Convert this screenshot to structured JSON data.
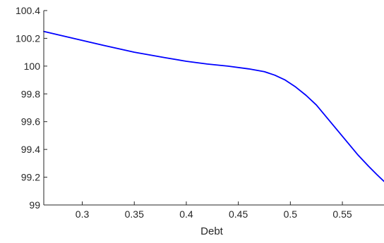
{
  "chart_data": {
    "type": "line",
    "title": "",
    "xlabel": "Debt",
    "ylabel": "",
    "xlim": [
      0.263,
      0.59
    ],
    "ylim": [
      99,
      100.4
    ],
    "xticks": [
      0.3,
      0.35,
      0.4,
      0.45,
      0.5,
      0.55
    ],
    "xtick_labels": [
      "0.3",
      "0.35",
      "0.4",
      "0.45",
      "0.5",
      "0.55"
    ],
    "yticks": [
      99,
      99.2,
      99.4,
      99.6,
      99.8,
      100,
      100.2,
      100.4
    ],
    "ytick_labels": [
      "99",
      "99.2",
      "99.4",
      "99.6",
      "99.8",
      "100",
      "100.2",
      "100.4"
    ],
    "grid": false,
    "legend": "none",
    "colors": {
      "line": "#0000ff",
      "axis": "#262626"
    },
    "series": [
      {
        "x": [
          0.263,
          0.28,
          0.3,
          0.32,
          0.35,
          0.38,
          0.4,
          0.42,
          0.44,
          0.46,
          0.475,
          0.485,
          0.495,
          0.505,
          0.515,
          0.525,
          0.535,
          0.545,
          0.555,
          0.565,
          0.575,
          0.583,
          0.59
        ],
        "y": [
          100.25,
          100.22,
          100.185,
          100.15,
          100.1,
          100.06,
          100.035,
          100.015,
          100.0,
          99.98,
          99.96,
          99.935,
          99.9,
          99.85,
          99.79,
          99.72,
          99.63,
          99.54,
          99.45,
          99.36,
          99.28,
          99.22,
          99.17
        ]
      }
    ]
  }
}
